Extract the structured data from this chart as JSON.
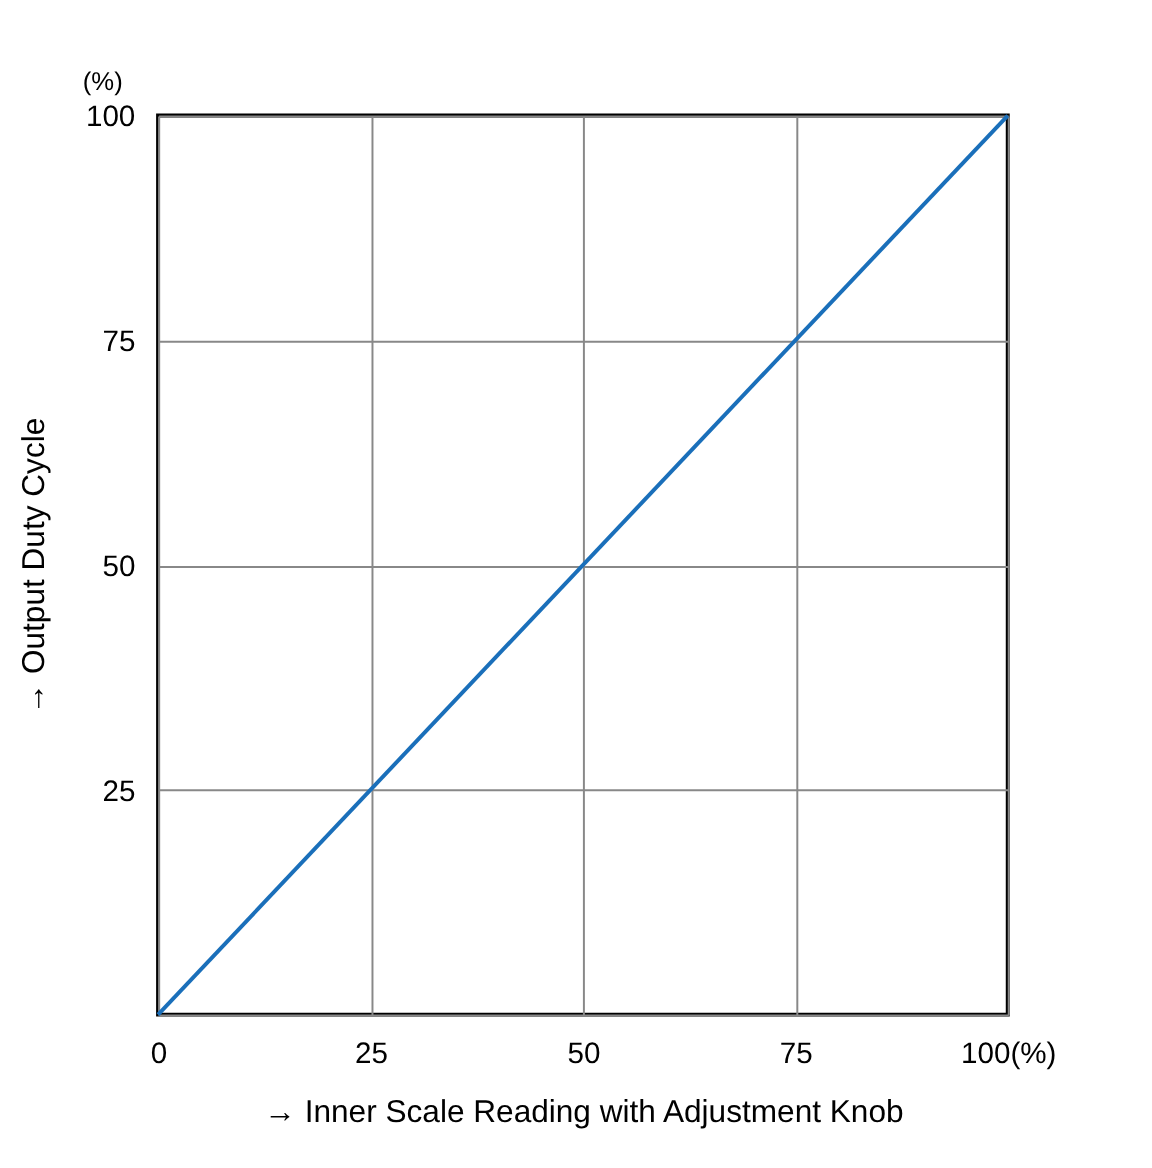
{
  "chart_data": {
    "type": "line",
    "xlabel": "→ Inner Scale Reading with Adjustment Knob",
    "ylabel": "→ Output Duty Cycle",
    "annotations": [
      "(%)"
    ],
    "x": [
      0,
      100
    ],
    "series": [
      {
        "color": "#1a6fba",
        "values": [
          0,
          100
        ]
      }
    ],
    "xlim": [
      0,
      100
    ],
    "ylim": [
      0,
      100
    ],
    "xticks": [
      0,
      25,
      50,
      75,
      {
        "value": 100,
        "label": "100(%)"
      }
    ],
    "yticks": [
      {
        "value": 0,
        "label": null
      },
      25,
      50,
      75,
      100
    ],
    "grid": true,
    "marker": "none",
    "line_style": "solid"
  }
}
